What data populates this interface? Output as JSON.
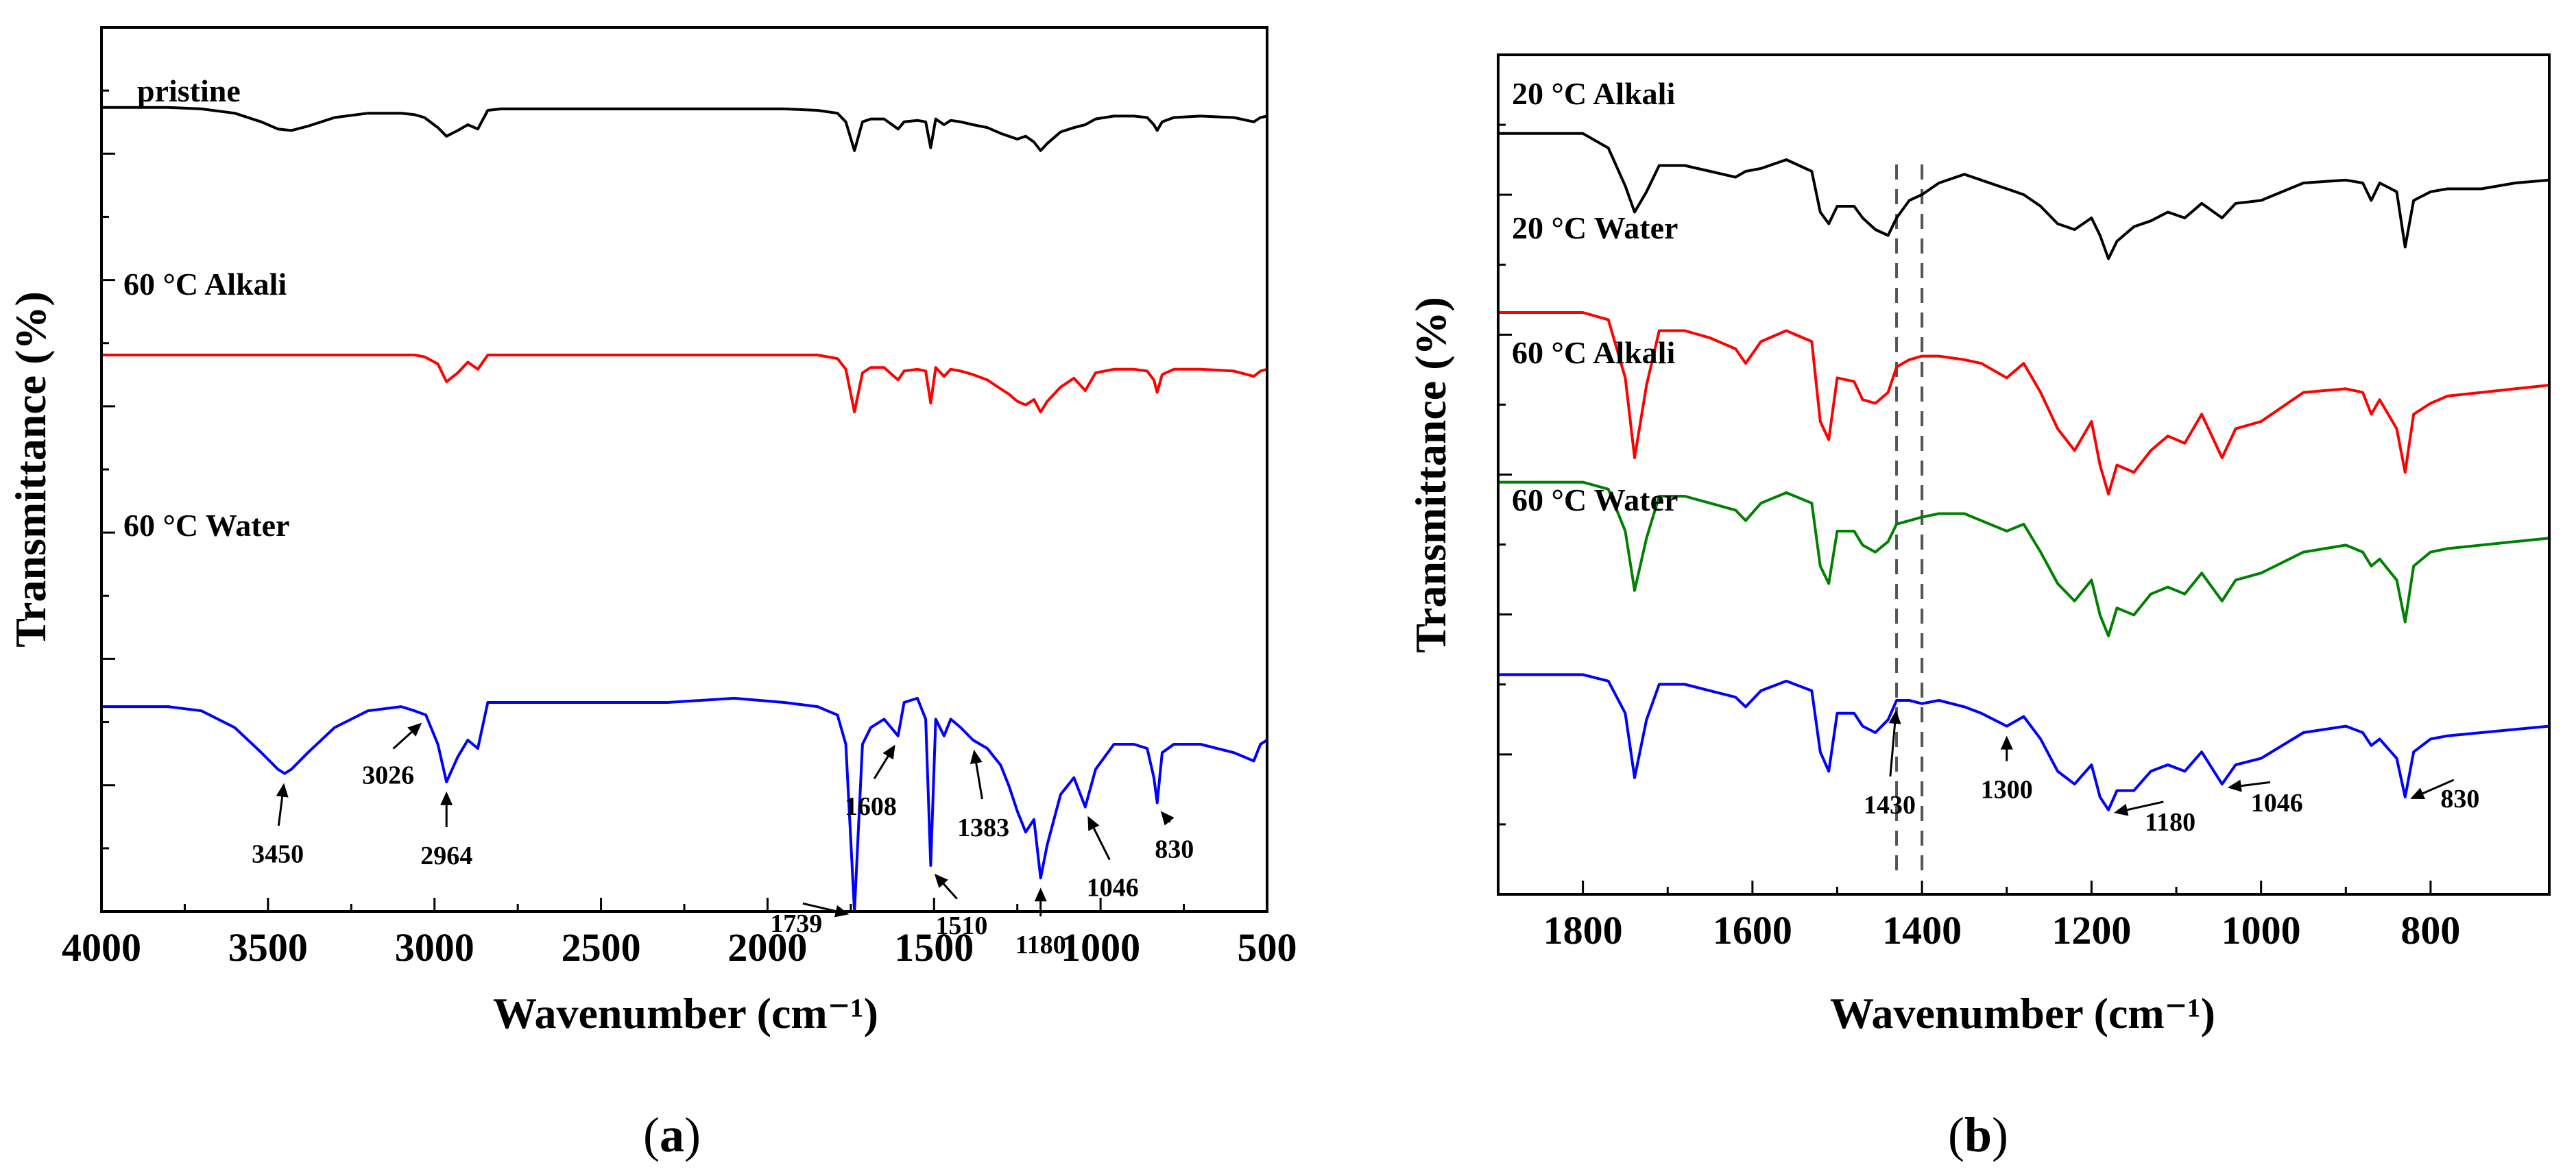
{
  "chart_data": [
    {
      "type": "line",
      "panel_label": "(a)",
      "panel_letter": "a",
      "xlabel": "Wavenumber (cm⁻¹)",
      "ylabel": "Transmittance (%)",
      "xlim": [
        4000,
        500
      ],
      "x_reversed": true,
      "x_ticks": [
        4000,
        3500,
        3000,
        2500,
        2000,
        1500,
        1000,
        500
      ],
      "x_tick_labels": [
        "4000",
        "3500",
        "3000",
        "2500",
        "2000",
        "1500",
        "1000",
        "500"
      ],
      "ylim": [
        0,
        100
      ],
      "series": [
        {
          "name": "pristine",
          "color": "#000000",
          "name_position": "top-left",
          "x": [
            4000,
            3800,
            3700,
            3600,
            3520,
            3470,
            3430,
            3380,
            3300,
            3200,
            3100,
            3060,
            3030,
            2990,
            2964,
            2930,
            2900,
            2870,
            2840,
            2800,
            2700,
            2500,
            2300,
            2100,
            1950,
            1850,
            1790,
            1765,
            1739,
            1715,
            1690,
            1650,
            1608,
            1590,
            1550,
            1525,
            1510,
            1495,
            1470,
            1450,
            1420,
            1383,
            1340,
            1300,
            1275,
            1250,
            1225,
            1200,
            1180,
            1160,
            1120,
            1080,
            1046,
            1015,
            960,
            900,
            860,
            840,
            830,
            815,
            780,
            700,
            600,
            540,
            520,
            500
          ],
          "y": [
            92,
            92,
            91,
            88,
            82,
            77,
            76,
            79,
            85,
            88,
            88,
            87,
            85,
            78,
            72,
            76,
            80,
            77,
            90,
            91,
            91,
            91,
            91,
            91,
            91,
            90,
            88,
            82,
            62,
            82,
            84,
            84,
            77,
            82,
            83,
            82,
            64,
            84,
            80,
            83,
            82,
            80,
            78,
            74,
            72,
            70,
            72,
            68,
            62,
            67,
            75,
            78,
            80,
            84,
            86,
            86,
            85,
            80,
            76,
            82,
            85,
            86,
            85,
            82,
            85,
            86
          ]
        },
        {
          "name": "60 °C Alkali",
          "color": "#ff0000",
          "name_position": "left",
          "x": [
            4000,
            3800,
            3700,
            3600,
            3520,
            3470,
            3430,
            3380,
            3300,
            3200,
            3100,
            3060,
            3030,
            2990,
            2964,
            2930,
            2900,
            2870,
            2840,
            2800,
            2700,
            2500,
            2300,
            2100,
            1950,
            1850,
            1790,
            1765,
            1739,
            1715,
            1690,
            1650,
            1608,
            1590,
            1550,
            1525,
            1510,
            1495,
            1470,
            1450,
            1420,
            1383,
            1340,
            1300,
            1275,
            1250,
            1225,
            1200,
            1180,
            1160,
            1120,
            1080,
            1046,
            1015,
            960,
            900,
            860,
            840,
            830,
            815,
            780,
            700,
            600,
            540,
            520,
            500
          ],
          "y": [
            70,
            70,
            70,
            70,
            70,
            70,
            70,
            70,
            70,
            70,
            70,
            70,
            69,
            65,
            55,
            60,
            66,
            62,
            70,
            70,
            70,
            70,
            70,
            70,
            70,
            70,
            68,
            62,
            38,
            60,
            63,
            63,
            56,
            61,
            62,
            61,
            43,
            63,
            58,
            62,
            61,
            59,
            56,
            51,
            48,
            44,
            42,
            45,
            38,
            44,
            52,
            57,
            50,
            60,
            62,
            62,
            61,
            56,
            49,
            59,
            62,
            62,
            61,
            58,
            61,
            62
          ]
        },
        {
          "name": "60 °C Water",
          "color": "#0000ff",
          "name_position": "left",
          "x": [
            4000,
            3800,
            3700,
            3600,
            3520,
            3470,
            3450,
            3430,
            3380,
            3300,
            3200,
            3100,
            3060,
            3026,
            2990,
            2964,
            2930,
            2900,
            2870,
            2840,
            2800,
            2700,
            2500,
            2300,
            2100,
            1950,
            1850,
            1790,
            1765,
            1739,
            1715,
            1690,
            1650,
            1608,
            1590,
            1550,
            1525,
            1510,
            1495,
            1470,
            1450,
            1420,
            1383,
            1340,
            1300,
            1275,
            1250,
            1225,
            1200,
            1180,
            1160,
            1120,
            1080,
            1046,
            1015,
            960,
            900,
            860,
            840,
            830,
            815,
            780,
            700,
            600,
            540,
            520,
            500
          ],
          "y": [
            49,
            49,
            48,
            44,
            38,
            34,
            33,
            34,
            38,
            44,
            48,
            49,
            48,
            47,
            40,
            31,
            37,
            41,
            39,
            50,
            50,
            50,
            50,
            50,
            51,
            50,
            49,
            47,
            40,
            0,
            40,
            44,
            46,
            42,
            50,
            51,
            46,
            11,
            46,
            42,
            46,
            44,
            41,
            39,
            35,
            30,
            24,
            19,
            22,
            8,
            16,
            28,
            32,
            25,
            34,
            40,
            40,
            39,
            32,
            26,
            38,
            40,
            40,
            38,
            36,
            40,
            41
          ]
        }
      ],
      "annotations": [
        {
          "label": "3450",
          "x": 3450,
          "arrow_to": "60 °C Water"
        },
        {
          "label": "3026",
          "x": 3026,
          "arrow_to": "60 °C Water"
        },
        {
          "label": "2964",
          "x": 2964,
          "arrow_to": "60 °C Water"
        },
        {
          "label": "1739",
          "x": 1739,
          "arrow_to": "60 °C Water"
        },
        {
          "label": "1608",
          "x": 1608,
          "arrow_to": "60 °C Water"
        },
        {
          "label": "1510",
          "x": 1510,
          "arrow_to": "60 °C Water"
        },
        {
          "label": "1383",
          "x": 1383,
          "arrow_to": "60 °C Water"
        },
        {
          "label": "1180",
          "x": 1180,
          "arrow_to": "60 °C Water"
        },
        {
          "label": "1046",
          "x": 1046,
          "arrow_to": "60 °C Water"
        },
        {
          "label": "830",
          "x": 830,
          "arrow_to": "60 °C Water"
        }
      ]
    },
    {
      "type": "line",
      "panel_label": "(b)",
      "panel_letter": "b",
      "xlabel": "Wavenumber (cm⁻¹)",
      "ylabel": "Transmittance (%)",
      "xlim": [
        1900,
        660
      ],
      "x_reversed": true,
      "x_ticks": [
        1800,
        1600,
        1400,
        1200,
        1000,
        800
      ],
      "x_tick_labels": [
        "1800",
        "1600",
        "1400",
        "1200",
        "1000",
        "800"
      ],
      "ylim": [
        0,
        100
      ],
      "reference_lines": [
        {
          "x": 1430,
          "style": "dashed",
          "color": "#555555"
        },
        {
          "x": 1400,
          "style": "dashed",
          "color": "#555555"
        }
      ],
      "series": [
        {
          "name": "20 °C Alkali",
          "color": "#000000",
          "name_position": "top-left",
          "x": [
            1900,
            1800,
            1770,
            1750,
            1739,
            1725,
            1710,
            1680,
            1650,
            1620,
            1608,
            1590,
            1560,
            1530,
            1520,
            1510,
            1500,
            1480,
            1470,
            1455,
            1440,
            1430,
            1415,
            1400,
            1380,
            1350,
            1330,
            1300,
            1280,
            1260,
            1240,
            1220,
            1200,
            1190,
            1180,
            1170,
            1150,
            1130,
            1110,
            1090,
            1070,
            1046,
            1030,
            1000,
            950,
            900,
            880,
            870,
            860,
            840,
            830,
            820,
            800,
            780,
            740,
            700,
            660
          ],
          "y": [
            93,
            93,
            88,
            75,
            66,
            73,
            82,
            82,
            80,
            78,
            80,
            81,
            84,
            80,
            66,
            62,
            68,
            68,
            64,
            60,
            58,
            64,
            70,
            72,
            76,
            79,
            77,
            74,
            72,
            68,
            62,
            60,
            64,
            58,
            50,
            56,
            61,
            63,
            66,
            64,
            69,
            64,
            69,
            70,
            76,
            77,
            76,
            70,
            76,
            73,
            54,
            70,
            73,
            74,
            74,
            76,
            77
          ]
        },
        {
          "name": "20 °C Water",
          "color": "#ff0000",
          "name_position": "left",
          "x": [
            1900,
            1800,
            1770,
            1750,
            1739,
            1725,
            1710,
            1680,
            1650,
            1620,
            1608,
            1590,
            1560,
            1530,
            1520,
            1510,
            1500,
            1480,
            1470,
            1455,
            1440,
            1430,
            1415,
            1400,
            1380,
            1350,
            1330,
            1300,
            1280,
            1260,
            1240,
            1220,
            1200,
            1190,
            1180,
            1170,
            1150,
            1130,
            1110,
            1090,
            1070,
            1046,
            1030,
            1000,
            950,
            900,
            880,
            870,
            860,
            840,
            830,
            820,
            800,
            780,
            740,
            700,
            660
          ],
          "y": [
            80,
            80,
            78,
            62,
            40,
            60,
            75,
            75,
            73,
            70,
            66,
            72,
            75,
            72,
            50,
            45,
            62,
            61,
            56,
            55,
            58,
            65,
            67,
            68,
            68,
            67,
            66,
            62,
            66,
            58,
            48,
            42,
            50,
            38,
            30,
            38,
            36,
            42,
            46,
            44,
            52,
            40,
            48,
            50,
            58,
            59,
            58,
            52,
            56,
            48,
            36,
            52,
            55,
            57,
            58,
            59,
            60
          ]
        },
        {
          "name": "60 °C Alkali",
          "color": "#008000",
          "name_position": "left",
          "x": [
            1900,
            1800,
            1770,
            1750,
            1739,
            1725,
            1710,
            1680,
            1650,
            1620,
            1608,
            1590,
            1560,
            1530,
            1520,
            1510,
            1500,
            1480,
            1470,
            1455,
            1440,
            1430,
            1415,
            1400,
            1380,
            1350,
            1330,
            1300,
            1280,
            1260,
            1240,
            1220,
            1200,
            1190,
            1180,
            1170,
            1150,
            1130,
            1110,
            1090,
            1070,
            1046,
            1030,
            1000,
            950,
            900,
            880,
            870,
            860,
            840,
            830,
            820,
            800,
            780,
            740,
            700,
            660
          ],
          "y": [
            64,
            64,
            62,
            50,
            33,
            48,
            60,
            60,
            58,
            56,
            53,
            58,
            61,
            58,
            40,
            35,
            50,
            50,
            46,
            44,
            47,
            52,
            53,
            54,
            55,
            55,
            53,
            50,
            52,
            44,
            35,
            30,
            36,
            26,
            20,
            28,
            26,
            32,
            34,
            32,
            38,
            30,
            36,
            38,
            44,
            46,
            44,
            40,
            42,
            36,
            24,
            40,
            44,
            45,
            46,
            47,
            48
          ]
        },
        {
          "name": "60 °C Water",
          "color": "#0000ff",
          "name_position": "left",
          "x": [
            1900,
            1800,
            1770,
            1750,
            1739,
            1725,
            1710,
            1680,
            1650,
            1620,
            1608,
            1590,
            1560,
            1530,
            1520,
            1510,
            1500,
            1480,
            1470,
            1455,
            1440,
            1430,
            1415,
            1400,
            1380,
            1350,
            1330,
            1300,
            1280,
            1260,
            1240,
            1220,
            1200,
            1190,
            1180,
            1170,
            1150,
            1130,
            1110,
            1090,
            1070,
            1046,
            1030,
            1000,
            950,
            900,
            880,
            870,
            860,
            840,
            830,
            820,
            800,
            780,
            740,
            700,
            660
          ],
          "y": [
            48,
            48,
            46,
            36,
            16,
            34,
            45,
            45,
            43,
            41,
            38,
            43,
            46,
            43,
            24,
            18,
            36,
            36,
            32,
            30,
            34,
            40,
            40,
            39,
            40,
            38,
            36,
            32,
            35,
            28,
            18,
            14,
            20,
            10,
            6,
            12,
            12,
            18,
            20,
            18,
            24,
            14,
            20,
            22,
            30,
            32,
            30,
            26,
            28,
            22,
            10,
            24,
            28,
            29,
            30,
            31,
            32
          ]
        }
      ],
      "annotations": [
        {
          "label": "1430",
          "x": 1430,
          "arrow_to": "60 °C Water"
        },
        {
          "label": "1300",
          "x": 1300,
          "arrow_to": "60 °C Water"
        },
        {
          "label": "1180",
          "x": 1180,
          "arrow_to": "60 °C Water"
        },
        {
          "label": "1046",
          "x": 1046,
          "arrow_to": "60 °C Water"
        },
        {
          "label": "830",
          "x": 830,
          "arrow_to": "60 °C Water"
        }
      ]
    }
  ]
}
